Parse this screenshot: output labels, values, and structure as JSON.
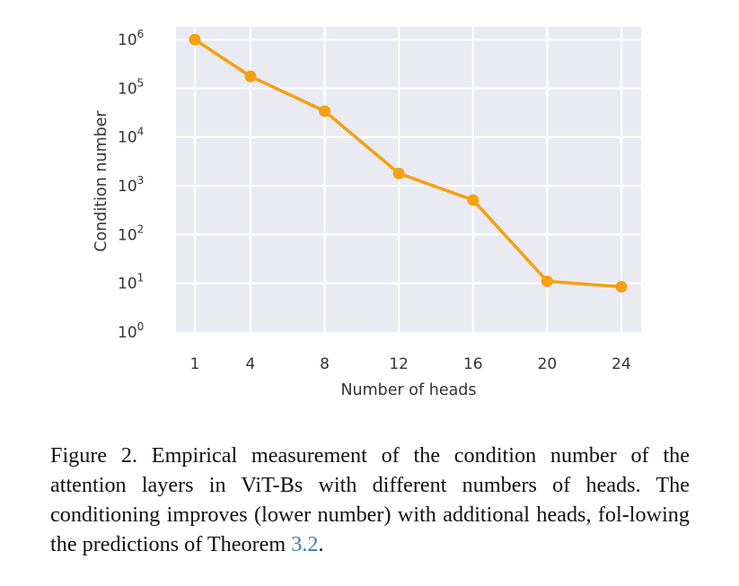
{
  "chart_data": {
    "type": "line",
    "title": "",
    "xlabel": "Number of heads",
    "ylabel": "Condition number",
    "yscale": "log",
    "x": [
      1,
      4,
      8,
      12,
      16,
      20,
      24
    ],
    "series": [
      {
        "name": "Condition number",
        "color": "#f5a00f",
        "values": [
          1000000,
          176000,
          34000,
          1800,
          510,
          11,
          8.5
        ]
      }
    ],
    "xticks": [
      "1",
      "4",
      "8",
      "12",
      "16",
      "20",
      "24"
    ],
    "xtick_values": [
      1,
      4,
      8,
      12,
      16,
      20,
      24
    ],
    "yticks": [
      {
        "base": "10",
        "exp": "0",
        "value": 1
      },
      {
        "base": "10",
        "exp": "1",
        "value": 10
      },
      {
        "base": "10",
        "exp": "2",
        "value": 100
      },
      {
        "base": "10",
        "exp": "3",
        "value": 1000
      },
      {
        "base": "10",
        "exp": "4",
        "value": 10000
      },
      {
        "base": "10",
        "exp": "5",
        "value": 100000
      },
      {
        "base": "10",
        "exp": "6",
        "value": 1000000
      }
    ],
    "xlim": [
      0,
      24.8
    ],
    "ylim_log10": [
      0,
      6.26
    ],
    "grid": true,
    "legend": "none",
    "background_color": "#eaeaf2",
    "grid_color": "#ffffff"
  },
  "caption": {
    "prefix": "Figure 2. Empirical measurement of the condition number of the attention layers in ViT-Bs with different numbers of heads. The conditioning improves (lower number) with additional heads, fol-lowing the predictions of Theorem ",
    "ref": "3.2",
    "suffix": "."
  }
}
